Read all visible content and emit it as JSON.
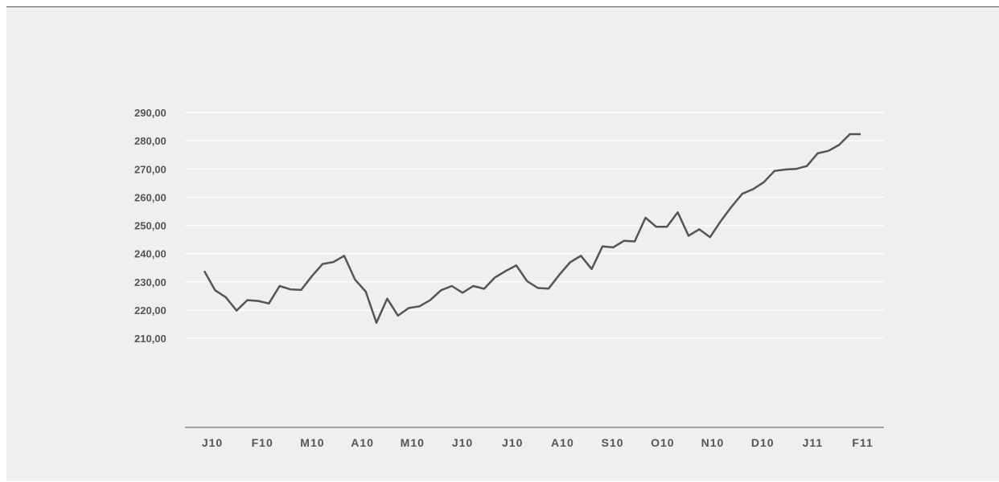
{
  "chart_data": {
    "type": "line",
    "colors": {
      "line": "#555555",
      "grid": "#ffffff",
      "axis": "#555555",
      "background": "#efefef"
    },
    "grid": true,
    "y_ticks": [
      "290,00",
      "280,00",
      "270,00",
      "260,00",
      "250,00",
      "240,00",
      "230,00",
      "220,00",
      "210,00"
    ],
    "y_tick_values": [
      290,
      280,
      270,
      260,
      250,
      240,
      230,
      220,
      210
    ],
    "x_tick_labels": [
      "J10",
      "F10",
      "M10",
      "A10",
      "M10",
      "J10",
      "J10",
      "A10",
      "S10",
      "O10",
      "N10",
      "D10",
      "J11",
      "F11"
    ],
    "series": [
      {
        "values": [
          233.8,
          227,
          224.5,
          219.8,
          223.5,
          223.2,
          222.3,
          228.5,
          227.3,
          227.1,
          232,
          236.3,
          237,
          239.2,
          230.8,
          226.5,
          215.5,
          224,
          218,
          220.7,
          221.3,
          223.5,
          227,
          228.5,
          226.1,
          228.5,
          227.5,
          231.5,
          233.8,
          235.8,
          230.2,
          227.8,
          227.6,
          232.5,
          236.9,
          239.2,
          234.5,
          242.5,
          242.2,
          244.5,
          244.3,
          252.7,
          249.5,
          249.5,
          254.6,
          246.3,
          248.6,
          245.8,
          251.5,
          256.6,
          261.2,
          262.8,
          265.3,
          269.3,
          269.8,
          270,
          271,
          275.5,
          276.4,
          278.5,
          282.3,
          282.3
        ]
      }
    ]
  }
}
